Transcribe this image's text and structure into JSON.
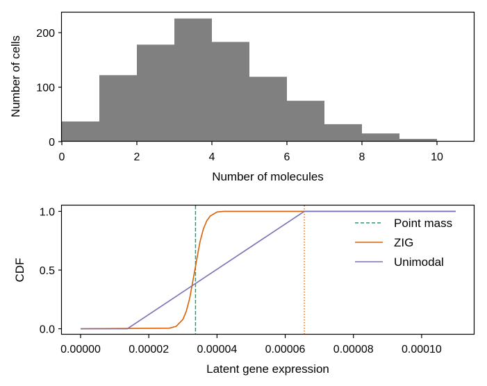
{
  "chart_data": [
    {
      "type": "bar",
      "subtype": "histogram",
      "xlabel": "Number of molecules",
      "ylabel": "Number of cells",
      "xlim": [
        0,
        11
      ],
      "ylim": [
        0,
        237
      ],
      "xticks": [
        0,
        2,
        4,
        6,
        8,
        10
      ],
      "yticks": [
        0,
        100,
        200
      ],
      "bin_edges": [
        0,
        1,
        2,
        3,
        4,
        5,
        6,
        7,
        8,
        9,
        10,
        11
      ],
      "values": [
        37,
        122,
        178,
        226,
        183,
        119,
        75,
        32,
        15,
        5,
        0
      ],
      "color": "#808080",
      "grid": false
    },
    {
      "type": "line",
      "xlabel": "Latent gene expression",
      "ylabel": "CDF",
      "xlim": [
        -5.5e-06,
        0.0001155
      ],
      "ylim": [
        -0.05,
        1.05
      ],
      "xticks": [
        "0.00000",
        "0.00002",
        "0.00004",
        "0.00006",
        "0.00008",
        "0.00010"
      ],
      "yticks": [
        "0.0",
        "0.5",
        "1.0"
      ],
      "legend_position": "top-right",
      "grid": false,
      "series": [
        {
          "name": "Point mass",
          "style": "dashed",
          "color": "#1b9e77",
          "vertical_at_x": 3.37e-05
        },
        {
          "name": "ZIG",
          "style": "solid",
          "color": "#d95f02",
          "x": [
            0.0,
            2.6e-05,
            2.8e-05,
            3e-05,
            3.1e-05,
            3.2e-05,
            3.3e-05,
            3.4e-05,
            3.5e-05,
            3.6e-05,
            3.7e-05,
            3.8e-05,
            4e-05,
            4.2e-05,
            0.00011
          ],
          "y": [
            0.0,
            0.005,
            0.02,
            0.08,
            0.15,
            0.26,
            0.42,
            0.58,
            0.74,
            0.85,
            0.92,
            0.96,
            0.995,
            1.0,
            1.0
          ]
        },
        {
          "name": "Unimodal",
          "style": "solid",
          "color": "#7570b3",
          "x": [
            0.0,
            1.37e-05,
            6.56e-05,
            0.00011
          ],
          "y": [
            0.0,
            0.0,
            1.0,
            1.0
          ]
        }
      ],
      "reference_lines": [
        {
          "style": "dotted",
          "color": "#1b9e77",
          "x": 3.37e-05
        },
        {
          "style": "dotted",
          "color": "#d95f02",
          "x": 6.56e-05
        }
      ]
    }
  ]
}
